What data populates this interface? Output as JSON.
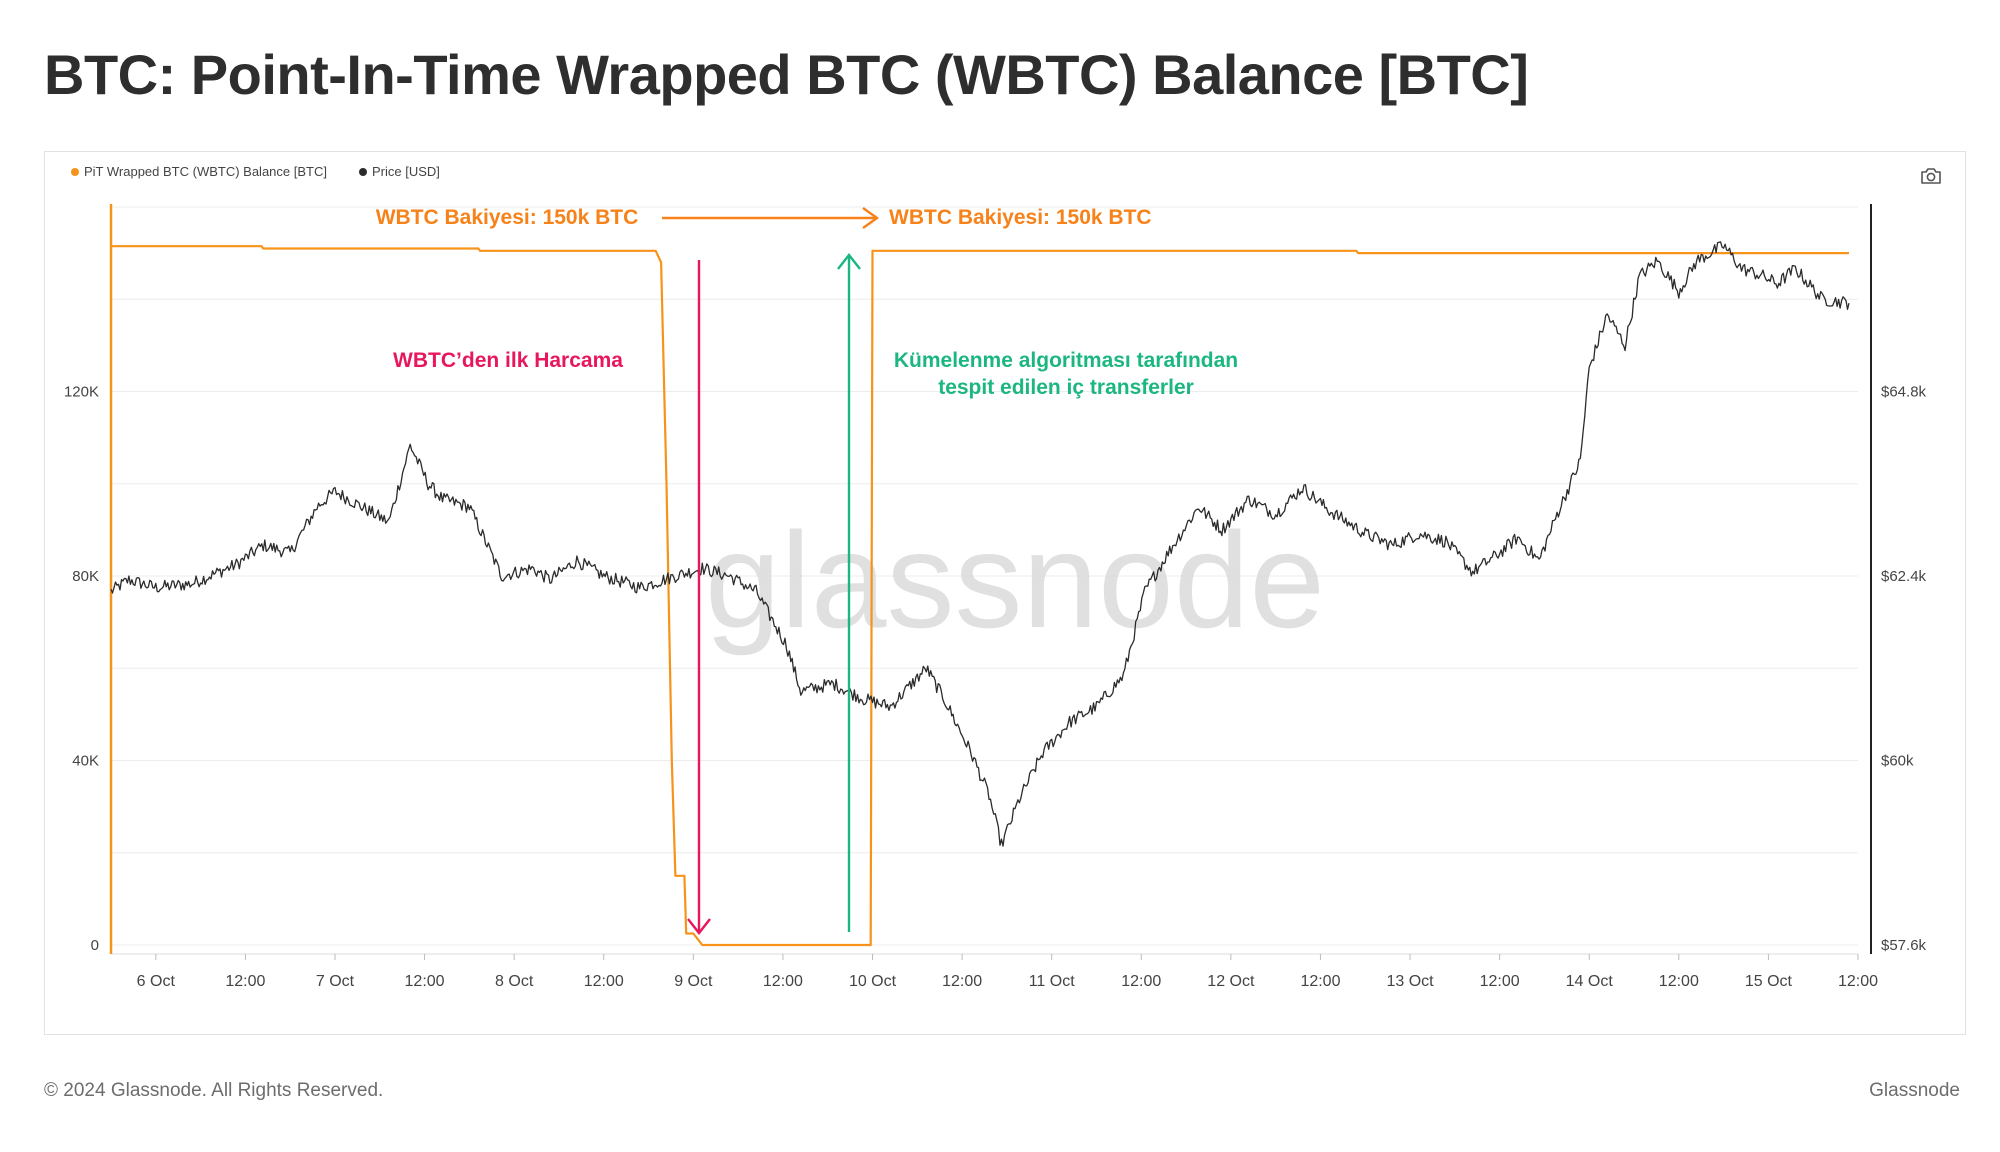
{
  "page": {
    "title": "BTC: Point-In-Time Wrapped BTC (WBTC) Balance [BTC]"
  },
  "legend": {
    "items": [
      {
        "label": "PiT Wrapped BTC (WBTC) Balance [BTC]",
        "color": "#f7931a"
      },
      {
        "label": "Price [USD]",
        "color": "#2b2b2b"
      }
    ]
  },
  "toolbar": {
    "camera_icon": "camera-icon"
  },
  "watermark": "glassnode",
  "annotations": {
    "balance_left": "WBTC Bakiyesi: 150k BTC",
    "balance_right": "WBTC Bakiyesi: 150k BTC",
    "first_spend": "WBTC’den ilk Harcama",
    "clustering_line1": "Kümelenme algoritması tarafından",
    "clustering_line2": "tespit edilen  iç transferler",
    "colors": {
      "orange": "#f7931a",
      "magenta": "#e8175d",
      "green": "#1cb780"
    }
  },
  "footer": {
    "copyright": "© 2024 Glassnode. All Rights Reserved.",
    "brand": "Glassnode"
  },
  "chart_data": {
    "type": "line",
    "x_axis": {
      "tick_labels": [
        "6 Oct",
        "12:00",
        "7 Oct",
        "12:00",
        "8 Oct",
        "12:00",
        "9 Oct",
        "12:00",
        "10 Oct",
        "12:00",
        "11 Oct",
        "12:00",
        "12 Oct",
        "12:00",
        "13 Oct",
        "12:00",
        "14 Oct",
        "12:00",
        "15 Oct",
        "12:00"
      ],
      "range_days": [
        5.75,
        15.5
      ]
    },
    "y_left": {
      "ticks": [
        0,
        40000,
        80000,
        120000
      ],
      "tick_labels": [
        "0",
        "40K",
        "80K",
        "120K"
      ],
      "range": [
        0,
        160000
      ],
      "grid": true
    },
    "y_right": {
      "ticks": [
        57600,
        60000,
        62400,
        64800
      ],
      "tick_labels": [
        "$57.6k",
        "$60k",
        "$62.4k",
        "$64.8k"
      ],
      "range": [
        57600,
        67200
      ]
    },
    "series": [
      {
        "name": "PiT Wrapped BTC (WBTC) Balance [BTC]",
        "axis": "left",
        "color": "#f7931a",
        "points": [
          [
            5.75,
            151500
          ],
          [
            6.59,
            151500
          ],
          [
            6.6,
            151000
          ],
          [
            7.8,
            151000
          ],
          [
            7.81,
            150500
          ],
          [
            8.79,
            150500
          ],
          [
            8.82,
            148000
          ],
          [
            8.85,
            100000
          ],
          [
            8.88,
            40000
          ],
          [
            8.9,
            15000
          ],
          [
            8.95,
            15000
          ],
          [
            8.96,
            2500
          ],
          [
            9.0,
            2500
          ],
          [
            9.02,
            1500
          ],
          [
            9.05,
            0
          ],
          [
            9.5,
            0
          ],
          [
            9.99,
            0
          ],
          [
            10.0,
            150500
          ],
          [
            12.7,
            150500
          ],
          [
            12.71,
            150000
          ],
          [
            15.45,
            150000
          ]
        ]
      },
      {
        "name": "Price [USD]",
        "axis": "right",
        "color": "#2b2b2b",
        "points": [
          [
            5.75,
            62200
          ],
          [
            5.85,
            62350
          ],
          [
            6.0,
            62250
          ],
          [
            6.2,
            62300
          ],
          [
            6.45,
            62550
          ],
          [
            6.6,
            62800
          ],
          [
            6.75,
            62700
          ],
          [
            6.9,
            63300
          ],
          [
            7.0,
            63500
          ],
          [
            7.15,
            63300
          ],
          [
            7.3,
            63100
          ],
          [
            7.42,
            64100
          ],
          [
            7.52,
            63600
          ],
          [
            7.6,
            63400
          ],
          [
            7.75,
            63300
          ],
          [
            7.93,
            62400
          ],
          [
            8.1,
            62500
          ],
          [
            8.2,
            62350
          ],
          [
            8.35,
            62600
          ],
          [
            8.5,
            62400
          ],
          [
            8.7,
            62250
          ],
          [
            8.9,
            62400
          ],
          [
            9.05,
            62500
          ],
          [
            9.2,
            62400
          ],
          [
            9.35,
            62200
          ],
          [
            9.52,
            61500
          ],
          [
            9.6,
            60900
          ],
          [
            9.78,
            61000
          ],
          [
            9.95,
            60800
          ],
          [
            10.1,
            60700
          ],
          [
            10.3,
            61200
          ],
          [
            10.4,
            60800
          ],
          [
            10.55,
            60100
          ],
          [
            10.65,
            59550
          ],
          [
            10.72,
            58900
          ],
          [
            10.82,
            59500
          ],
          [
            10.95,
            60100
          ],
          [
            11.1,
            60500
          ],
          [
            11.25,
            60700
          ],
          [
            11.4,
            61100
          ],
          [
            11.52,
            62200
          ],
          [
            11.65,
            62700
          ],
          [
            11.82,
            63300
          ],
          [
            11.95,
            63000
          ],
          [
            12.1,
            63400
          ],
          [
            12.25,
            63200
          ],
          [
            12.4,
            63550
          ],
          [
            12.55,
            63250
          ],
          [
            12.75,
            62950
          ],
          [
            12.9,
            62800
          ],
          [
            13.05,
            62950
          ],
          [
            13.2,
            62850
          ],
          [
            13.35,
            62450
          ],
          [
            13.5,
            62700
          ],
          [
            13.6,
            62900
          ],
          [
            13.72,
            62600
          ],
          [
            13.82,
            63200
          ],
          [
            13.95,
            63900
          ],
          [
            14.0,
            65100
          ],
          [
            14.1,
            65800
          ],
          [
            14.2,
            65400
          ],
          [
            14.28,
            66300
          ],
          [
            14.38,
            66500
          ],
          [
            14.5,
            66100
          ],
          [
            14.6,
            66500
          ],
          [
            14.75,
            66700
          ],
          [
            14.85,
            66400
          ],
          [
            14.97,
            66300
          ],
          [
            15.05,
            66200
          ],
          [
            15.15,
            66400
          ],
          [
            15.3,
            66000
          ],
          [
            15.45,
            65950
          ]
        ]
      }
    ]
  }
}
